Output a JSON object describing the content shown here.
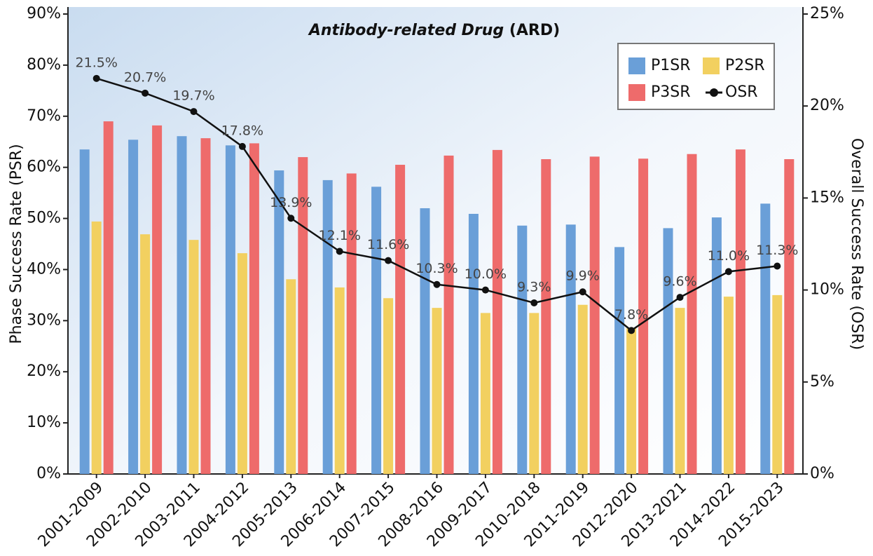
{
  "chart_data": {
    "type": "bar",
    "title": "Antibody-related Drug",
    "title_suffix": "(ARD)",
    "ylabel": "Phase Success Rate (PSR)",
    "y2label": "Overall Success Rate (OSR)",
    "categories": [
      "2001-2009",
      "2002-2010",
      "2003-2011",
      "2004-2012",
      "2005-2013",
      "2006-2014",
      "2007-2015",
      "2008-2016",
      "2009-2017",
      "2010-2018",
      "2011-2019",
      "2012-2020",
      "2013-2021",
      "2014-2022",
      "2015-2023"
    ],
    "series": [
      {
        "name": "P1SR",
        "type": "bar",
        "color": "#6a9fd8",
        "values": [
          63.5,
          65.4,
          66.1,
          64.3,
          59.4,
          57.5,
          56.2,
          52.0,
          50.9,
          48.6,
          48.8,
          44.4,
          48.1,
          50.2,
          52.9
        ]
      },
      {
        "name": "P2SR",
        "type": "bar",
        "color": "#f2d060",
        "values": [
          49.4,
          46.9,
          45.8,
          43.2,
          38.1,
          36.5,
          34.4,
          32.5,
          31.5,
          31.5,
          33.1,
          28.5,
          32.5,
          34.7,
          35.0
        ]
      },
      {
        "name": "P3SR",
        "type": "bar",
        "color": "#ee6b6b",
        "values": [
          69.0,
          68.2,
          65.7,
          64.7,
          62.0,
          58.8,
          60.5,
          62.3,
          63.4,
          61.6,
          62.1,
          61.7,
          62.6,
          63.5,
          61.6
        ]
      },
      {
        "name": "OSR",
        "type": "line",
        "axis": "y2",
        "color": "#111111",
        "values": [
          21.5,
          20.7,
          19.7,
          17.8,
          13.9,
          12.1,
          11.6,
          10.3,
          10.0,
          9.3,
          9.9,
          7.8,
          9.6,
          11.0,
          11.3
        ],
        "value_labels": [
          "21.5%",
          "20.7%",
          "19.7%",
          "17.8%",
          "13.9%",
          "12.1%",
          "11.6%",
          "10.3%",
          "10.0%",
          "9.3%",
          "9.9%",
          "7.8%",
          "9.6%",
          "11.0%",
          "11.3%"
        ]
      }
    ],
    "ylim": [
      0,
      90
    ],
    "yticks": [
      {
        "value": 0,
        "label": "0%"
      },
      {
        "value": 10,
        "label": "10%"
      },
      {
        "value": 20,
        "label": "20%"
      },
      {
        "value": 30,
        "label": "30%"
      },
      {
        "value": 40,
        "label": "40%"
      },
      {
        "value": 50,
        "label": "50%"
      },
      {
        "value": 60,
        "label": "60%"
      },
      {
        "value": 70,
        "label": "70%"
      },
      {
        "value": 80,
        "label": "80%"
      },
      {
        "value": 90,
        "label": "90%"
      }
    ],
    "y2lim": [
      0,
      25
    ],
    "y2ticks": [
      {
        "value": 0,
        "label": "0%"
      },
      {
        "value": 5,
        "label": "5%"
      },
      {
        "value": 10,
        "label": "10%"
      },
      {
        "value": 15,
        "label": "15%"
      },
      {
        "value": 20,
        "label": "20%"
      },
      {
        "value": 25,
        "label": "25%"
      }
    ],
    "legend": "top-right"
  }
}
